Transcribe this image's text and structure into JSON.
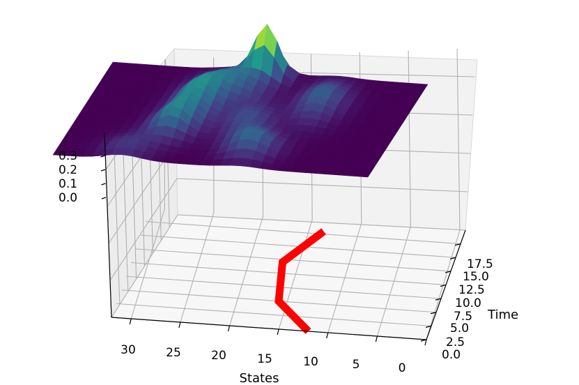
{
  "chart_data": {
    "type": "3d-surface",
    "xlabel": "States",
    "ylabel": "Time",
    "zlabel": "",
    "x_ticks": [
      "0",
      "5",
      "10",
      "15",
      "20",
      "25",
      "30"
    ],
    "y_ticks": [
      "0.0",
      "2.5",
      "5.0",
      "7.5",
      "10.0",
      "12.5",
      "15.0",
      "17.5"
    ],
    "z_ticks": [
      "0.0",
      "0.1",
      "0.2",
      "0.3"
    ],
    "xlim": [
      0,
      32
    ],
    "ylim": [
      0,
      20
    ],
    "zlim": [
      0,
      0.35
    ],
    "colormap": "viridis",
    "surface": {
      "description_values": "probability density over states (x) and time (y)",
      "peak_value": 0.35,
      "peaks": [
        {
          "state": 16,
          "time": 19,
          "value": 0.35
        },
        {
          "state": 22,
          "time": 12,
          "value": 0.18
        },
        {
          "state": 21,
          "time": 7,
          "value": 0.14
        },
        {
          "state": 13,
          "time": 4,
          "value": 0.12
        },
        {
          "state": 9,
          "time": 14,
          "value": 0.12
        }
      ]
    },
    "path": {
      "color": "#ff0000",
      "points": [
        {
          "state": 12,
          "time": 0
        },
        {
          "state": 16,
          "time": 5
        },
        {
          "state": 17,
          "time": 12
        },
        {
          "state": 14,
          "time": 18
        }
      ]
    }
  }
}
